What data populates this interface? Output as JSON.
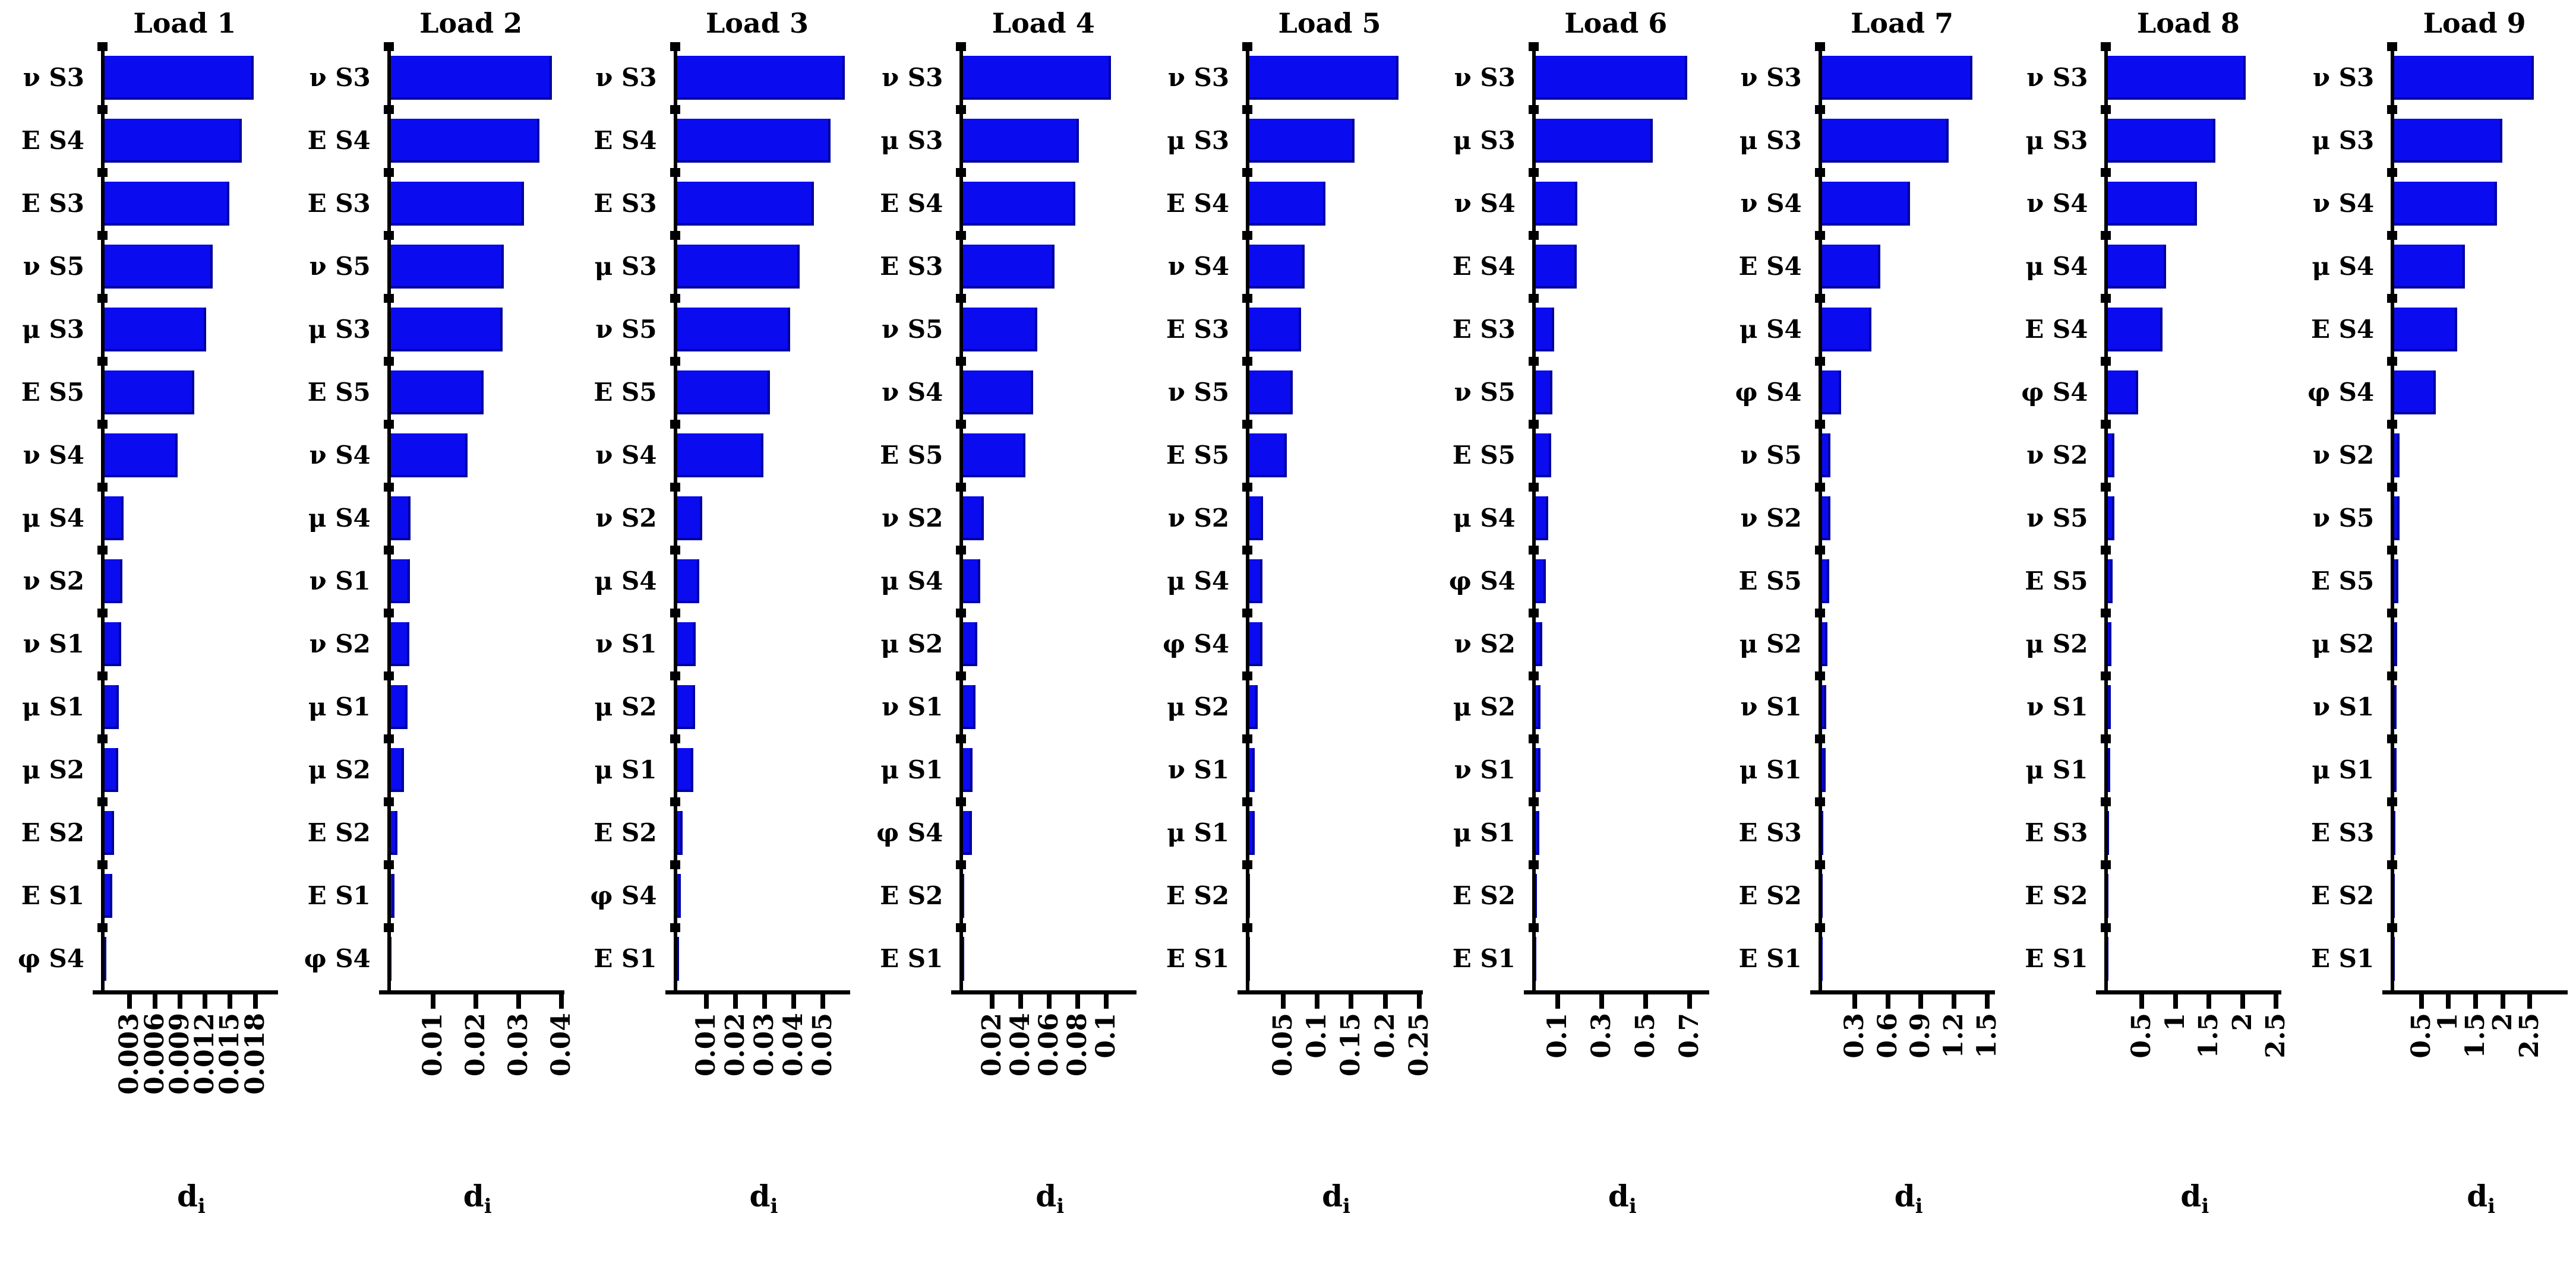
{
  "figure": {
    "background": "#ffffff",
    "bar_color": "#0b0bf0",
    "axis_color": "#000000",
    "xlabel_base": "d",
    "xlabel_sub": "i"
  },
  "chart_data": [
    {
      "type": "bar",
      "orientation": "horizontal",
      "title": "Load 1",
      "xlabel": "di",
      "categories": [
        "ν S3",
        "E S4",
        "E S3",
        "ν S5",
        "μ S3",
        "E S5",
        "ν S4",
        "μ S4",
        "ν S2",
        "ν S1",
        "μ S1",
        "μ S2",
        "E S2",
        "E S1",
        "φ S4"
      ],
      "values": [
        0.0178,
        0.0164,
        0.0149,
        0.0129,
        0.0121,
        0.0107,
        0.0087,
        0.0023,
        0.0021,
        0.002,
        0.0017,
        0.0016,
        0.0011,
        0.0009,
        0.0002
      ],
      "xticks": [
        0.003,
        0.006,
        0.009,
        0.012,
        0.015,
        0.018
      ],
      "xtick_labels": [
        "0.003",
        "0.006",
        "0.009",
        "0.012",
        "0.015",
        "0.018"
      ],
      "xmax": 0.0207,
      "grid": false
    },
    {
      "type": "bar",
      "orientation": "horizontal",
      "title": "Load 2",
      "xlabel": "di",
      "categories": [
        "ν S3",
        "E S4",
        "E S3",
        "ν S5",
        "μ S3",
        "E S5",
        "ν S4",
        "μ S4",
        "ν S1",
        "ν S2",
        "μ S1",
        "μ S2",
        "E S2",
        "E S1",
        "φ S4"
      ],
      "values": [
        0.0378,
        0.0349,
        0.0313,
        0.0265,
        0.0262,
        0.0218,
        0.018,
        0.0046,
        0.0045,
        0.0044,
        0.004,
        0.0031,
        0.0016,
        0.0009,
        0.0002
      ],
      "xticks": [
        0.01,
        0.02,
        0.03,
        0.04
      ],
      "xtick_labels": [
        "0.01",
        "0.02",
        "0.03",
        "0.04"
      ],
      "xmax": 0.0407,
      "grid": false
    },
    {
      "type": "bar",
      "orientation": "horizontal",
      "title": "Load 3",
      "xlabel": "di",
      "categories": [
        "ν S3",
        "E S4",
        "E S3",
        "μ S3",
        "ν S5",
        "E S5",
        "ν S4",
        "ν S2",
        "μ S4",
        "ν S1",
        "μ S2",
        "μ S1",
        "E S2",
        "φ S4",
        "E S1"
      ],
      "values": [
        0.0574,
        0.0526,
        0.047,
        0.0421,
        0.0387,
        0.0319,
        0.0297,
        0.0087,
        0.0077,
        0.0065,
        0.0061,
        0.0055,
        0.0019,
        0.0013,
        0.0006
      ],
      "xticks": [
        0.01,
        0.02,
        0.03,
        0.04,
        0.05
      ],
      "xtick_labels": [
        "0.01",
        "0.02",
        "0.03",
        "0.04",
        "0.05"
      ],
      "xmax": 0.0594,
      "grid": false
    },
    {
      "type": "bar",
      "orientation": "horizontal",
      "title": "Load 4",
      "xlabel": "di",
      "categories": [
        "ν S3",
        "μ S3",
        "E S4",
        "E S3",
        "ν S5",
        "ν S4",
        "E S5",
        "ν S2",
        "μ S4",
        "μ S2",
        "ν S1",
        "μ S1",
        "φ S4",
        "E S2",
        "E S1"
      ],
      "values": [
        0.103,
        0.0807,
        0.0781,
        0.0637,
        0.0518,
        0.0486,
        0.0433,
        0.0144,
        0.0118,
        0.0098,
        0.0085,
        0.0066,
        0.0059,
        0.0008,
        0.0006
      ],
      "xticks": [
        0.02,
        0.04,
        0.06,
        0.08,
        0.1
      ],
      "xtick_labels": [
        "0.02",
        "0.04",
        "0.06",
        "0.08",
        "0.1"
      ],
      "xmax": 0.121,
      "grid": false
    },
    {
      "type": "bar",
      "orientation": "horizontal",
      "title": "Load 5",
      "xlabel": "di",
      "categories": [
        "ν S3",
        "μ S3",
        "E S4",
        "ν S4",
        "E S3",
        "ν S5",
        "E S5",
        "ν S2",
        "μ S4",
        "φ S4",
        "μ S2",
        "ν S1",
        "μ S1",
        "E S2",
        "E S1"
      ],
      "values": [
        0.22,
        0.1545,
        0.112,
        0.081,
        0.0765,
        0.0642,
        0.0547,
        0.02,
        0.019,
        0.0188,
        0.0123,
        0.0082,
        0.008,
        0.0012,
        0.0008
      ],
      "xticks": [
        0.05,
        0.1,
        0.15,
        0.2,
        0.25
      ],
      "xtick_labels": [
        "0.05",
        "0.1",
        "0.15",
        "0.2",
        "0.25"
      ],
      "xmax": 0.2555,
      "grid": false
    },
    {
      "type": "bar",
      "orientation": "horizontal",
      "title": "Load 6",
      "xlabel": "di",
      "categories": [
        "ν S3",
        "μ S3",
        "ν S4",
        "E S4",
        "E S3",
        "ν S5",
        "E S5",
        "μ S4",
        "φ S4",
        "ν S2",
        "μ S2",
        "ν S1",
        "μ S1",
        "E S2",
        "E S1"
      ],
      "values": [
        0.688,
        0.531,
        0.19,
        0.186,
        0.083,
        0.075,
        0.07,
        0.058,
        0.046,
        0.029,
        0.021,
        0.0205,
        0.017,
        0.006,
        0.004
      ],
      "xticks": [
        0.1,
        0.3,
        0.5,
        0.7
      ],
      "xtick_labels": [
        "0.1",
        "0.3",
        "0.5",
        "0.7"
      ],
      "xmax": 0.7875,
      "grid": false
    },
    {
      "type": "bar",
      "orientation": "horizontal",
      "title": "Load 7",
      "xlabel": "di",
      "categories": [
        "ν S3",
        "μ S3",
        "ν S4",
        "E S4",
        "μ S4",
        "φ S4",
        "ν S5",
        "ν S2",
        "E S5",
        "μ S2",
        "ν S1",
        "μ S1",
        "E S3",
        "E S2",
        "E S1"
      ],
      "values": [
        1.367,
        1.15,
        0.8,
        0.533,
        0.45,
        0.175,
        0.078,
        0.075,
        0.067,
        0.05,
        0.042,
        0.035,
        0.01,
        0.005,
        0.003
      ],
      "xticks": [
        0.3,
        0.6,
        0.9,
        1.2,
        1.5
      ],
      "xtick_labels": [
        "0.3",
        "0.6",
        "0.9",
        "1.2",
        "1.5"
      ],
      "xmax": 1.575,
      "grid": false
    },
    {
      "type": "bar",
      "orientation": "horizontal",
      "title": "Load 8",
      "xlabel": "di",
      "categories": [
        "ν S3",
        "μ S3",
        "ν S4",
        "μ S4",
        "E S4",
        "φ S4",
        "ν S2",
        "ν S5",
        "E S5",
        "μ S2",
        "ν S1",
        "μ S1",
        "E S3",
        "E S2",
        "E S1"
      ],
      "values": [
        2.05,
        1.6,
        1.32,
        0.86,
        0.81,
        0.45,
        0.095,
        0.09,
        0.07,
        0.045,
        0.04,
        0.035,
        0.012,
        0.005,
        0.003
      ],
      "xticks": [
        0.5,
        1,
        1.5,
        2,
        2.5
      ],
      "xtick_labels": [
        "0.5",
        "1",
        "1.5",
        "2",
        "2.5"
      ],
      "xmax": 2.58,
      "grid": false
    },
    {
      "type": "bar",
      "orientation": "horizontal",
      "title": "Load 9",
      "xlabel": "di",
      "categories": [
        "ν S3",
        "μ S3",
        "ν S4",
        "μ S4",
        "E S4",
        "φ S4",
        "ν S2",
        "ν S5",
        "E S5",
        "μ S2",
        "ν S1",
        "μ S1",
        "E S3",
        "E S2",
        "E S1"
      ],
      "values": [
        2.58,
        1.99,
        1.9,
        1.3,
        1.16,
        0.77,
        0.1,
        0.095,
        0.07,
        0.05,
        0.045,
        0.04,
        0.015,
        0.006,
        0.004
      ],
      "xticks": [
        0.5,
        1,
        1.5,
        2,
        2.5
      ],
      "xtick_labels": [
        "0.5",
        "1",
        "1.5",
        "2",
        "2.5"
      ],
      "xmax": 3.2,
      "grid": false
    }
  ]
}
